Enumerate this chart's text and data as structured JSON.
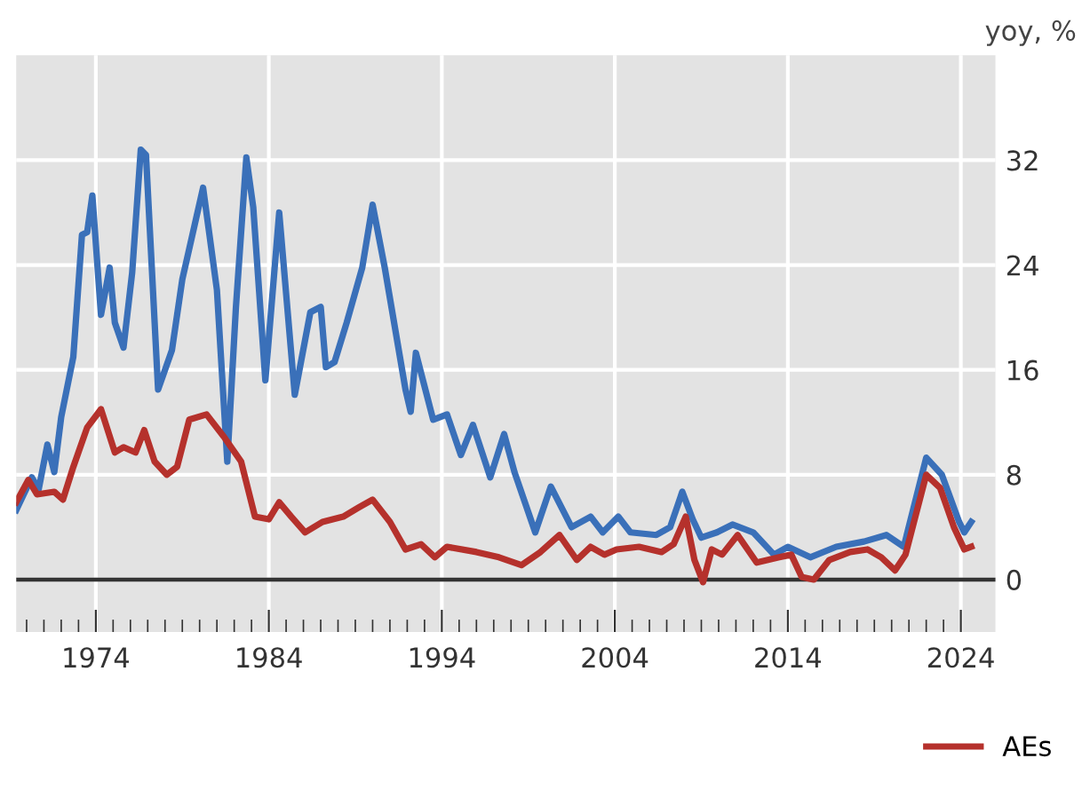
{
  "chart_data": {
    "type": "line",
    "ylabel": "yoy, %",
    "xlim": [
      1969.4,
      2026
    ],
    "ylim": [
      -4,
      40
    ],
    "xticks": [
      {
        "value": 1970,
        "label": null
      },
      {
        "value": 1971,
        "label": null
      },
      {
        "value": 1972,
        "label": null
      },
      {
        "value": 1973,
        "label": null
      },
      1974,
      {
        "value": 1975,
        "label": null
      },
      {
        "value": 1976,
        "label": null
      },
      {
        "value": 1977,
        "label": null
      },
      {
        "value": 1978,
        "label": null
      },
      {
        "value": 1979,
        "label": null
      },
      {
        "value": 1980,
        "label": null
      },
      {
        "value": 1981,
        "label": null
      },
      {
        "value": 1982,
        "label": null
      },
      {
        "value": 1983,
        "label": null
      },
      1984,
      {
        "value": 1985,
        "label": null
      },
      {
        "value": 1986,
        "label": null
      },
      {
        "value": 1987,
        "label": null
      },
      {
        "value": 1988,
        "label": null
      },
      {
        "value": 1989,
        "label": null
      },
      {
        "value": 1990,
        "label": null
      },
      {
        "value": 1991,
        "label": null
      },
      {
        "value": 1992,
        "label": null
      },
      {
        "value": 1993,
        "label": null
      },
      1994,
      {
        "value": 1995,
        "label": null
      },
      {
        "value": 1996,
        "label": null
      },
      {
        "value": 1997,
        "label": null
      },
      {
        "value": 1998,
        "label": null
      },
      {
        "value": 1999,
        "label": null
      },
      {
        "value": 2000,
        "label": null
      },
      {
        "value": 2001,
        "label": null
      },
      {
        "value": 2002,
        "label": null
      },
      {
        "value": 2003,
        "label": null
      },
      2004,
      {
        "value": 2005,
        "label": null
      },
      {
        "value": 2006,
        "label": null
      },
      {
        "value": 2007,
        "label": null
      },
      {
        "value": 2008,
        "label": null
      },
      {
        "value": 2009,
        "label": null
      },
      {
        "value": 2010,
        "label": null
      },
      {
        "value": 2011,
        "label": null
      },
      {
        "value": 2012,
        "label": null
      },
      {
        "value": 2013,
        "label": null
      },
      2014,
      {
        "value": 2015,
        "label": null
      },
      {
        "value": 2016,
        "label": null
      },
      {
        "value": 2017,
        "label": null
      },
      {
        "value": 2018,
        "label": null
      },
      {
        "value": 2019,
        "label": null
      },
      {
        "value": 2020,
        "label": null
      },
      {
        "value": 2021,
        "label": null
      },
      {
        "value": 2022,
        "label": null
      },
      {
        "value": 2023,
        "label": null
      },
      2024
    ],
    "yticks": [
      0,
      8,
      16,
      24,
      32
    ],
    "grid": true,
    "legend": "bottom right",
    "marker": "none",
    "line_style": "solid",
    "ref_lines": [
      {
        "axis": "y",
        "value": 0,
        "color": "#333333"
      }
    ],
    "series": [
      {
        "color": "#3a70b9",
        "x": [
          1969.4,
          1970.3,
          1970.7,
          1971.2,
          1971.6,
          1972.0,
          1972.7,
          1973.2,
          1973.5,
          1973.8,
          1974.3,
          1974.8,
          1975.1,
          1975.6,
          1976.1,
          1976.6,
          1976.9,
          1977.6,
          1978.4,
          1979.0,
          1980.2,
          1981.0,
          1981.6,
          1982.1,
          1982.7,
          1983.1,
          1983.8,
          1984.6,
          1985.5,
          1986.4,
          1987.0,
          1987.3,
          1987.8,
          1988.5,
          1989.4,
          1990.0,
          1990.7,
          1991.9,
          1992.2,
          1992.5,
          1993.5,
          1994.3,
          1995.1,
          1995.8,
          1996.8,
          1997.6,
          1998.2,
          1999.4,
          2000.3,
          2001.5,
          2002.6,
          2003.3,
          2004.2,
          2004.9,
          2006.4,
          2007.2,
          2007.9,
          2008.5,
          2009.0,
          2009.9,
          2010.8,
          2012.0,
          2013.2,
          2014.0,
          2015.3,
          2016.8,
          2018.4,
          2019.7,
          2020.7,
          2022.0,
          2022.9,
          2023.9,
          2024.2,
          2024.6
        ],
        "values": [
          5.3,
          7.8,
          6.9,
          10.3,
          8.2,
          12.4,
          17.0,
          26.3,
          26.5,
          29.3,
          20.2,
          23.8,
          19.6,
          17.7,
          23.4,
          32.8,
          32.4,
          14.5,
          17.5,
          22.9,
          29.9,
          22.1,
          9.0,
          20.8,
          32.2,
          28.4,
          15.2,
          28.0,
          14.1,
          20.4,
          20.8,
          16.2,
          16.6,
          19.6,
          23.8,
          28.6,
          23.8,
          14.5,
          12.8,
          17.3,
          12.2,
          12.6,
          9.5,
          11.8,
          7.8,
          11.1,
          8.2,
          3.6,
          7.1,
          4.0,
          4.8,
          3.6,
          4.8,
          3.6,
          3.4,
          4.0,
          6.7,
          4.6,
          3.2,
          3.6,
          4.2,
          3.6,
          1.9,
          2.5,
          1.7,
          2.5,
          2.9,
          3.4,
          2.5,
          9.3,
          8.0,
          4.4,
          3.6,
          4.4
        ]
      },
      {
        "name": "AEs",
        "color": "#b5312c",
        "x": [
          1969.4,
          1970.1,
          1970.6,
          1971.6,
          1972.1,
          1972.7,
          1973.5,
          1974.3,
          1975.1,
          1975.6,
          1976.3,
          1976.8,
          1977.4,
          1978.1,
          1978.7,
          1979.4,
          1980.4,
          1981.4,
          1982.4,
          1983.2,
          1984.0,
          1984.6,
          1985.3,
          1986.1,
          1987.1,
          1988.3,
          1989.2,
          1990.0,
          1991.0,
          1991.9,
          1992.8,
          1993.6,
          1994.3,
          1996.0,
          1997.3,
          1998.6,
          1999.7,
          2000.8,
          2001.8,
          2002.6,
          2003.4,
          2004.1,
          2005.4,
          2006.7,
          2007.4,
          2008.1,
          2008.6,
          2009.1,
          2009.6,
          2010.2,
          2011.1,
          2012.2,
          2013.5,
          2014.2,
          2014.8,
          2015.5,
          2016.4,
          2017.6,
          2018.6,
          2019.4,
          2020.2,
          2020.8,
          2022.0,
          2022.8,
          2023.6,
          2024.2,
          2024.6
        ],
        "values": [
          5.9,
          7.6,
          6.5,
          6.7,
          6.1,
          8.6,
          11.6,
          13.0,
          9.7,
          10.1,
          9.7,
          11.4,
          9.0,
          8.0,
          8.6,
          12.2,
          12.6,
          10.9,
          9.0,
          4.8,
          4.6,
          5.9,
          4.8,
          3.6,
          4.4,
          4.8,
          5.5,
          6.1,
          4.4,
          2.3,
          2.7,
          1.7,
          2.5,
          2.1,
          1.7,
          1.1,
          2.1,
          3.4,
          1.5,
          2.5,
          1.9,
          2.3,
          2.5,
          2.1,
          2.7,
          4.8,
          1.5,
          -0.2,
          2.3,
          1.9,
          3.4,
          1.3,
          1.7,
          1.9,
          0.2,
          0,
          1.5,
          2.1,
          2.3,
          1.7,
          0.7,
          1.9,
          8.0,
          7.0,
          4.0,
          2.3,
          2.5
        ]
      }
    ]
  }
}
